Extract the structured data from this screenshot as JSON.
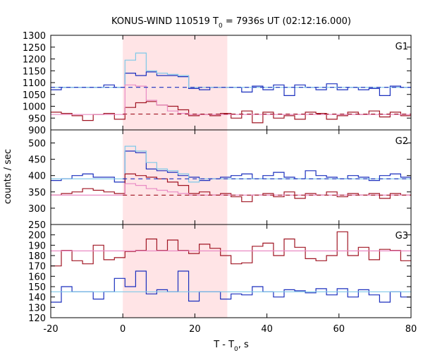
{
  "chart_data": {
    "type": "line",
    "title_main": "KONUS-WIND 110519 T",
    "title_sub": "0",
    "title_rest": " = 7936s UT (02:12:16.000)",
    "xlabel_main": "T - T",
    "xlabel_sub": "0",
    "xlabel_rest": ", s",
    "ylabel": "counts / sec",
    "xlim": [
      -20,
      80
    ],
    "xticks": [
      -20,
      0,
      20,
      40,
      60,
      80
    ],
    "highlight": {
      "x0": 0,
      "x1": 29,
      "color": "#ffe4e6"
    },
    "colors": {
      "blue": "#1a2fbe",
      "light_blue": "#7ec8e8",
      "red": "#a01523",
      "pink": "#e98ac4"
    },
    "panels": [
      {
        "label": "G1",
        "ylim": [
          900,
          1300
        ],
        "yticks": [
          900,
          950,
          1000,
          1050,
          1100,
          1150,
          1200,
          1250,
          1300
        ],
        "bin_start": -20,
        "bin_width": 2.944,
        "series": [
          {
            "color_key": "blue",
            "kind": "step",
            "values": [
              1070,
              1080,
              1080,
              1080,
              1080,
              1090,
              1080,
              1140,
              1130,
              1145,
              1130,
              1130,
              1125,
              1075,
              1070,
              1080,
              1080,
              1080,
              1060,
              1085,
              1070,
              1090,
              1045,
              1090,
              1080,
              1070,
              1095,
              1070,
              1080,
              1070,
              1075,
              1045,
              1085,
              1080,
              1090
            ]
          },
          {
            "color_key": "light_blue",
            "kind": "step",
            "values": [
              1080,
              1080,
              1080,
              1080,
              1080,
              1080,
              1080,
              1195,
              1225,
              1150,
              1140,
              1135,
              1130,
              1080,
              1080,
              1080,
              1080,
              1080,
              1080,
              1080,
              1080,
              1080,
              1080,
              1080,
              1080,
              1080,
              1080,
              1080,
              1080,
              1080,
              1080,
              1080,
              1080,
              1080,
              1080
            ]
          },
          {
            "color_key": "red",
            "kind": "step",
            "values": [
              975,
              970,
              960,
              940,
              965,
              970,
              945,
              995,
              1015,
              1020,
              1005,
              1000,
              985,
              960,
              965,
              960,
              970,
              950,
              980,
              930,
              975,
              950,
              960,
              945,
              975,
              970,
              945,
              960,
              975,
              965,
              980,
              955,
              975,
              960,
              970
            ]
          },
          {
            "color_key": "pink",
            "kind": "step",
            "values": [
              965,
              965,
              965,
              965,
              965,
              965,
              965,
              1090,
              1085,
              1025,
              1005,
              980,
              970,
              965,
              965,
              965,
              965,
              965,
              965,
              965,
              965,
              965,
              965,
              965,
              965,
              965,
              965,
              965,
              965,
              965,
              965,
              965,
              965,
              965,
              965
            ]
          },
          {
            "color_key": "blue",
            "kind": "dashed",
            "x_range": [
              -20,
              80
            ],
            "value": 1080
          },
          {
            "color_key": "red",
            "kind": "dashed",
            "x_range": [
              0,
              80
            ],
            "value": 967
          }
        ]
      },
      {
        "label": "G2",
        "ylim": [
          250,
          540
        ],
        "yticks": [
          250,
          300,
          350,
          400,
          450,
          500
        ],
        "bin_start": -20,
        "bin_width": 2.944,
        "series": [
          {
            "color_key": "blue",
            "kind": "step",
            "values": [
              385,
              390,
              400,
              405,
              395,
              395,
              380,
              475,
              470,
              420,
              415,
              410,
              400,
              395,
              385,
              390,
              395,
              400,
              405,
              390,
              400,
              410,
              395,
              390,
              415,
              400,
              395,
              390,
              400,
              395,
              385,
              400,
              405,
              395,
              390
            ]
          },
          {
            "color_key": "light_blue",
            "kind": "step",
            "values": [
              390,
              390,
              390,
              390,
              390,
              390,
              390,
              490,
              475,
              440,
              420,
              415,
              405,
              380,
              390,
              390,
              390,
              390,
              390,
              390,
              390,
              390,
              390,
              390,
              390,
              390,
              390,
              390,
              390,
              390,
              390,
              390,
              390,
              390,
              390
            ]
          },
          {
            "color_key": "red",
            "kind": "step",
            "values": [
              340,
              345,
              350,
              360,
              355,
              350,
              345,
              405,
              400,
              395,
              390,
              380,
              370,
              345,
              350,
              340,
              345,
              335,
              320,
              340,
              345,
              335,
              350,
              330,
              345,
              340,
              350,
              335,
              345,
              340,
              345,
              330,
              345,
              340,
              335
            ]
          },
          {
            "color_key": "pink",
            "kind": "step",
            "values": [
              340,
              340,
              340,
              340,
              340,
              340,
              340,
              375,
              370,
              360,
              355,
              350,
              345,
              340,
              340,
              340,
              340,
              340,
              340,
              340,
              340,
              340,
              340,
              340,
              340,
              340,
              340,
              340,
              340,
              340,
              340,
              340,
              340,
              340,
              340
            ]
          },
          {
            "color_key": "blue",
            "kind": "dashed",
            "x_range": [
              0,
              80
            ],
            "value": 390
          },
          {
            "color_key": "red",
            "kind": "dashed",
            "x_range": [
              0,
              80
            ],
            "value": 340
          }
        ]
      },
      {
        "label": "G3",
        "ylim": [
          120,
          210
        ],
        "yticks": [
          120,
          130,
          140,
          150,
          160,
          170,
          180,
          190,
          200
        ],
        "bin_start": -20,
        "bin_width": 2.944,
        "series": [
          {
            "color_key": "red",
            "kind": "step",
            "values": [
              170,
              185,
              175,
              172,
              190,
              176,
              178,
              184,
              185,
              196,
              185,
              195,
              185,
              182,
              191,
              187,
              180,
              172,
              173,
              189,
              192,
              180,
              196,
              188,
              177,
              175,
              180,
              203,
              180,
              188,
              176,
              186,
              185,
              175,
              185
            ]
          },
          {
            "color_key": "pink",
            "kind": "flat",
            "x_range": [
              -20,
              80
            ],
            "value": 184.5
          },
          {
            "color_key": "blue",
            "kind": "step",
            "values": [
              135,
              150,
              145,
              145,
              138,
              145,
              158,
              150,
              165,
              143,
              147,
              145,
              165,
              136,
              145,
              145,
              138,
              143,
              142,
              150,
              145,
              140,
              147,
              146,
              144,
              148,
              142,
              148,
              140,
              147,
              142,
              135,
              145,
              140,
              137
            ]
          },
          {
            "color_key": "light_blue",
            "kind": "flat",
            "x_range": [
              -20,
              80
            ],
            "value": 145
          }
        ]
      }
    ]
  }
}
